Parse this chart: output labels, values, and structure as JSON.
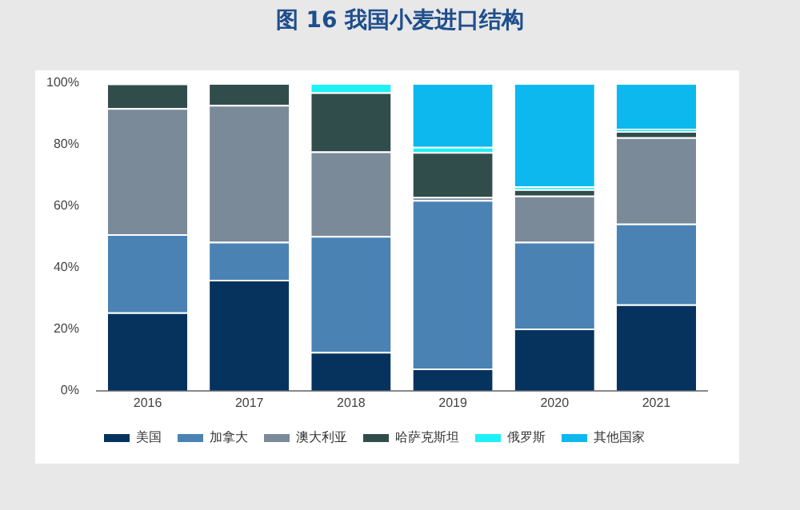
{
  "chart_data": {
    "type": "bar",
    "stacked": true,
    "title": "图 16 我国小麦进口结构",
    "categories": [
      "2016",
      "2017",
      "2018",
      "2019",
      "2020",
      "2021"
    ],
    "series": [
      {
        "name": "美国",
        "color": "#06335e",
        "values": [
          25.5,
          36.1,
          12.6,
          7.2,
          20.2,
          28.1
        ]
      },
      {
        "name": "加拿大",
        "color": "#4a82b4",
        "values": [
          25.4,
          12.3,
          37.7,
          54.8,
          28.2,
          26.2
        ]
      },
      {
        "name": "澳大利亚",
        "color": "#7a8a99",
        "values": [
          41,
          44.5,
          27.5,
          1,
          15,
          28.1
        ]
      },
      {
        "name": "哈萨克斯坦",
        "color": "#314d4b",
        "values": [
          8,
          7.1,
          19.2,
          14.6,
          2.1,
          2
        ]
      },
      {
        "name": "俄罗斯",
        "color": "#1ef0f8",
        "values": [
          null,
          null,
          3,
          1.7,
          0.9,
          0.8
        ]
      },
      {
        "name": "其他国家",
        "color": "#0cb8ee",
        "values": [
          null,
          null,
          null,
          20.7,
          33.6,
          14.8
        ]
      }
    ],
    "ylim": [
      0,
      100
    ],
    "yticks": [
      {
        "value": 0,
        "label": "0%"
      },
      {
        "value": 20,
        "label": "20%"
      },
      {
        "value": 40,
        "label": "40%"
      },
      {
        "value": 60,
        "label": "60%"
      },
      {
        "value": 80,
        "label": "80%"
      },
      {
        "value": 100,
        "label": "100%"
      }
    ],
    "grid": false,
    "legend": "bottom"
  }
}
